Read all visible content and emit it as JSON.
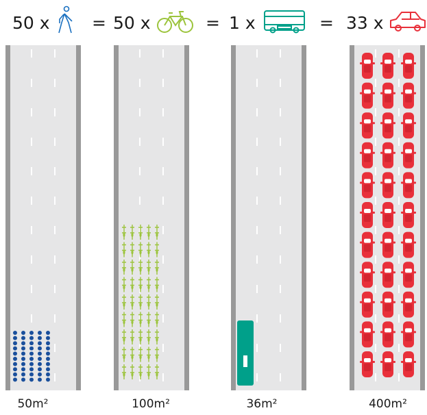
{
  "separator": "=",
  "columns": [
    {
      "count": "50 x",
      "area": "50m²"
    },
    {
      "count": "50 x",
      "area": "100m²"
    },
    {
      "count": "1 x",
      "area": "36m²"
    },
    {
      "count": "33 x",
      "area": "400m²"
    }
  ]
}
